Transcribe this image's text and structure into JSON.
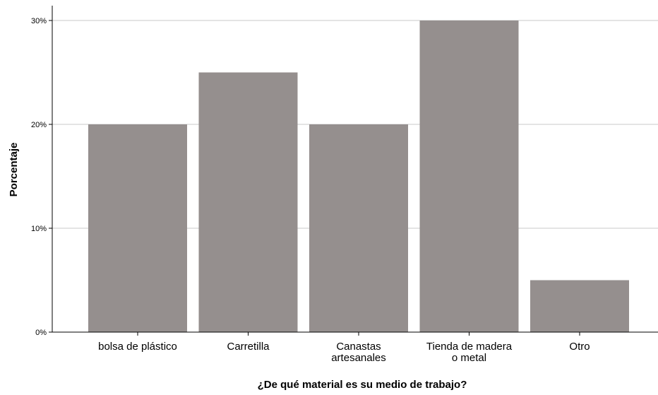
{
  "chart_data": {
    "type": "bar",
    "categories": [
      "bolsa de plástico",
      "Carretilla",
      "Canastas artesanales",
      "Tienda de madera o metal",
      "Otro"
    ],
    "category_label_lines": [
      [
        "bolsa de plástico"
      ],
      [
        "Carretilla"
      ],
      [
        "Canastas",
        "artesanales"
      ],
      [
        "Tienda de madera",
        "o metal"
      ],
      [
        "Otro"
      ]
    ],
    "values": [
      20,
      25,
      20,
      30,
      5
    ],
    "xlabel": "¿De qué material es su medio de trabajo?",
    "ylabel": "Porcentaje",
    "ylim": [
      0,
      30
    ],
    "yticks": [
      0,
      10,
      20,
      30
    ],
    "ytick_labels": [
      "0%",
      "10%",
      "20%",
      "30%"
    ],
    "grid": true,
    "legend": "none",
    "colors": {
      "bar": "#958f8e",
      "grid": "#c8c8c8",
      "axis": "#000000",
      "background": "#ffffff"
    }
  }
}
